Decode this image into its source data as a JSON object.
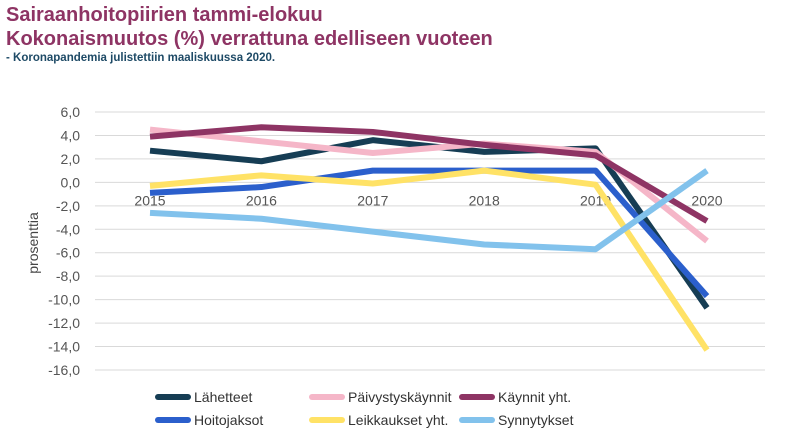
{
  "title_line1": "Sairaanhoitopiirien tammi-elokuu",
  "title_line2": "Kokonaismuutos (%) verrattuna edelliseen vuoteen",
  "subtitle": "- Koronapandemia julistettiin maaliskuussa 2020.",
  "chart_data": {
    "type": "line",
    "title": "Sairaanhoitopiirien tammi-elokuu Kokonaismuutos (%) verrattuna edelliseen vuoteen",
    "subtitle": "- Koronapandemia julistettiin maaliskuussa 2020.",
    "xlabel": "",
    "ylabel": "prosenttia",
    "x": [
      "2015",
      "2016",
      "2017",
      "2018",
      "2019",
      "2020"
    ],
    "ylim": [
      -16,
      6
    ],
    "yticks": [
      "6,0",
      "4,0",
      "2,0",
      "0,0",
      "-2,0",
      "-4,0",
      "-6,0",
      "-8,0",
      "-10,0",
      "-12,0",
      "-14,0",
      "-16,0"
    ],
    "grid": true,
    "legend_position": "bottom",
    "series": [
      {
        "name": "Lähetteet",
        "color": "#163d54",
        "values": [
          2.7,
          1.8,
          3.6,
          2.6,
          2.9,
          -10.7
        ]
      },
      {
        "name": "Päivystyskäynnit",
        "color": "#f5b6c8",
        "values": [
          4.5,
          3.5,
          2.5,
          3.3,
          2.6,
          -5.0
        ]
      },
      {
        "name": "Käynnit yht.",
        "color": "#8e3464",
        "values": [
          3.9,
          4.7,
          4.3,
          3.2,
          2.3,
          -3.3
        ]
      },
      {
        "name": "Hoitojaksot",
        "color": "#2b5fcc",
        "values": [
          -0.9,
          -0.4,
          1.0,
          1.0,
          1.0,
          -9.7
        ]
      },
      {
        "name": "Leikkaukset yht.",
        "color": "#ffe266",
        "values": [
          -0.3,
          0.6,
          -0.1,
          1.0,
          -0.2,
          -14.3
        ]
      },
      {
        "name": "Synnytykset",
        "color": "#82c2ec",
        "values": [
          -2.6,
          -3.1,
          -4.2,
          -5.3,
          -5.7,
          1.0
        ]
      }
    ]
  }
}
